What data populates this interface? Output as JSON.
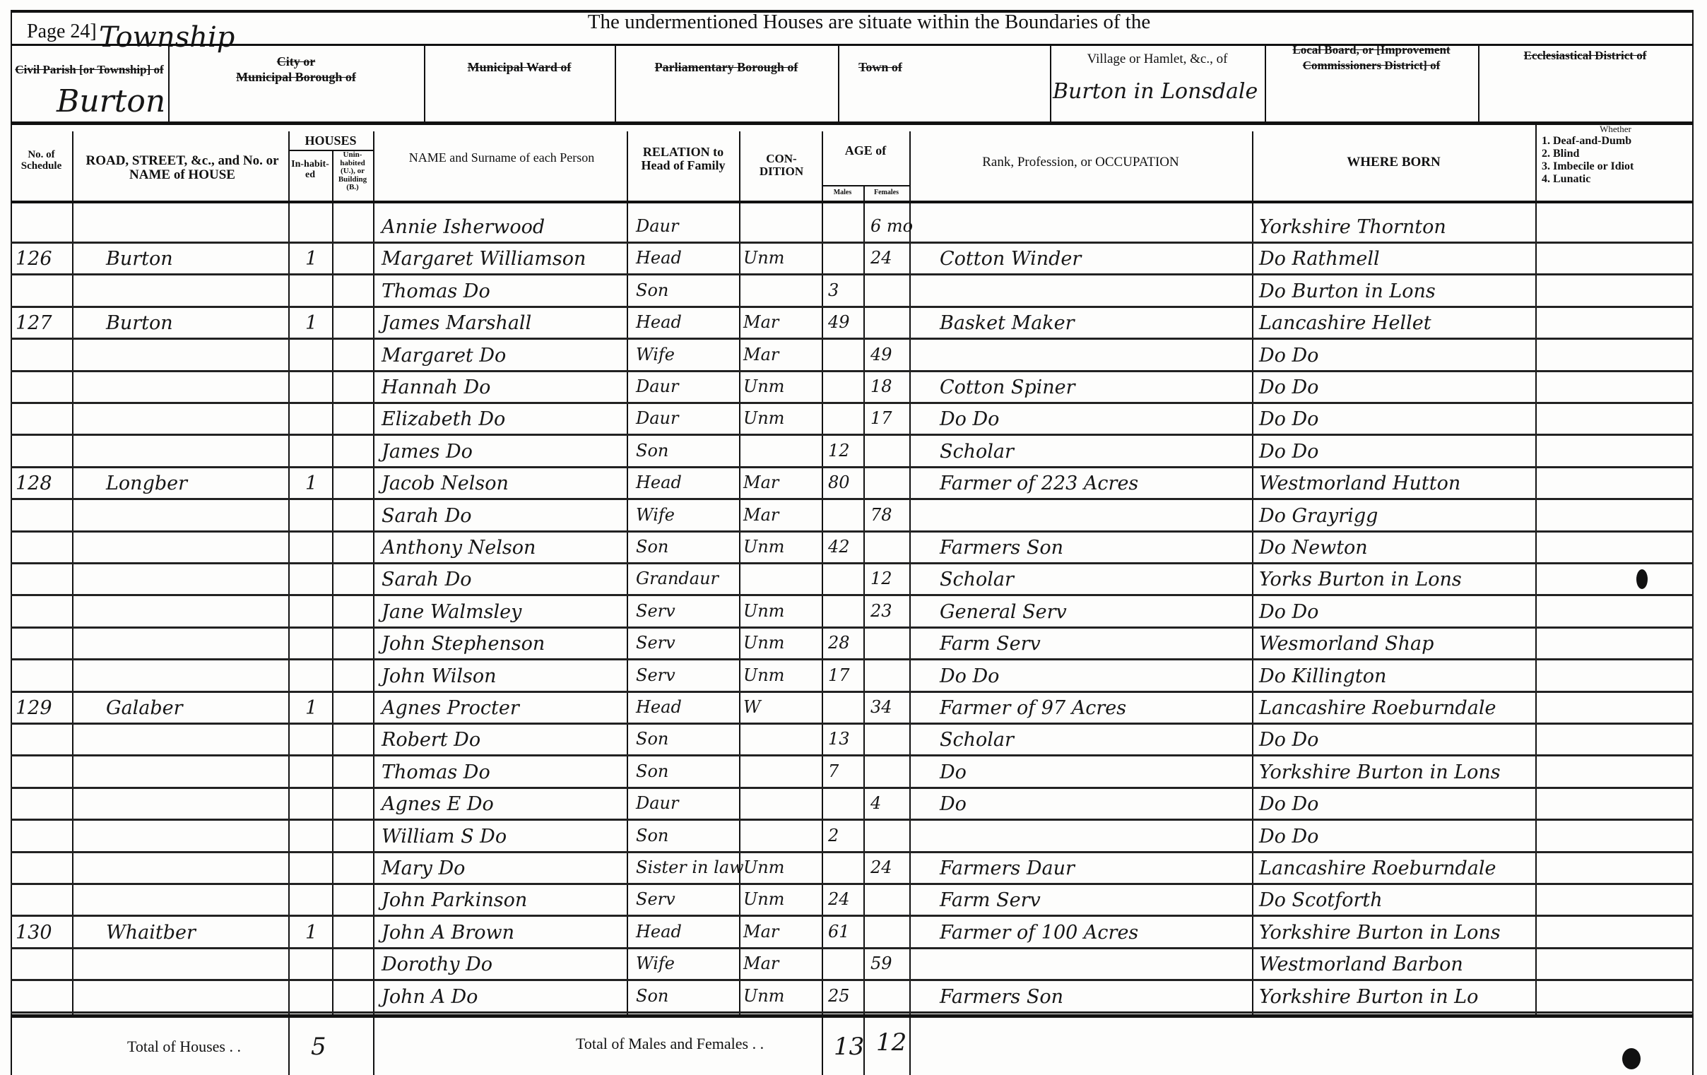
{
  "page_label": "Page 24]",
  "title": "The undermentioned Houses are situate within the Boundaries of the",
  "boundaries": {
    "civil_parish_label": "Civil Parish [or Township] of",
    "civil_parish_overwrite": "Township",
    "civil_parish_value": "Burton",
    "city_label_1": "City or",
    "city_label_2": "Municipal Borough of",
    "ward_label": "Municipal Ward of",
    "parliamentary_label": "Parliamentary Borough of",
    "town_label": "Town of",
    "village_label": "Village or Hamlet, &c., of",
    "village_value": "Burton in Lonsdale",
    "local_board_label_1": "Local Board, or [Improvement",
    "local_board_label_2": "Commissioners District] of",
    "ecclesiastical_label": "Ecclesiastical District of"
  },
  "columns": {
    "schedule": "No. of Schedule",
    "road": "ROAD, STREET, &c., and No. or NAME of HOUSE",
    "houses": "HOUSES",
    "inhabited": "In-habit-ed",
    "uninhabited": "Unin-habited (U.), or Building (B.)",
    "name": "NAME and Surname of each Person",
    "relation": "RELATION to Head of Family",
    "condition": "CON-DITION",
    "age": "AGE of",
    "males": "Males",
    "females": "Females",
    "occupation": "Rank, Profession, or OCCUPATION",
    "where_born": "WHERE BORN",
    "infirmity_title": "Whether",
    "infirmity_1": "1. Deaf-and-Dumb",
    "infirmity_2": "2. Blind",
    "infirmity_3": "3. Imbecile or Idiot",
    "infirmity_4": "4. Lunatic"
  },
  "rows": [
    {
      "schedule": "",
      "road": "",
      "inhabited": "",
      "name": "Annie Isherwood",
      "relation": "Daur",
      "condition": "",
      "male_age": "",
      "female_age": "6 mo",
      "occupation": "",
      "where_born": "Yorkshire  Thornton"
    },
    {
      "schedule": "126",
      "road": "Burton",
      "inhabited": "1",
      "name": "Margaret Williamson",
      "relation": "Head",
      "condition": "Unm",
      "male_age": "",
      "female_age": "24",
      "occupation": "Cotton Winder",
      "where_born": "Do  Rathmell"
    },
    {
      "schedule": "",
      "road": "",
      "inhabited": "",
      "name": "Thomas  Do",
      "relation": "Son",
      "condition": "",
      "male_age": "3",
      "female_age": "",
      "occupation": "",
      "where_born": "Do  Burton in Lons"
    },
    {
      "schedule": "127",
      "road": "Burton",
      "inhabited": "1",
      "name": "James  Marshall",
      "relation": "Head",
      "condition": "Mar",
      "male_age": "49",
      "female_age": "",
      "occupation": "Basket Maker",
      "where_born": "Lancashire  Hellet"
    },
    {
      "schedule": "",
      "road": "",
      "inhabited": "",
      "name": "Margaret  Do",
      "relation": "Wife",
      "condition": "Mar",
      "male_age": "",
      "female_age": "49",
      "occupation": "",
      "where_born": "Do    Do"
    },
    {
      "schedule": "",
      "road": "",
      "inhabited": "",
      "name": "Hannah  Do",
      "relation": "Daur",
      "condition": "Unm",
      "male_age": "",
      "female_age": "18",
      "occupation": "Cotton Spiner",
      "where_born": "Do    Do"
    },
    {
      "schedule": "",
      "road": "",
      "inhabited": "",
      "name": "Elizabeth  Do",
      "relation": "Daur",
      "condition": "Unm",
      "male_age": "",
      "female_age": "17",
      "occupation": "Do    Do",
      "where_born": "Do    Do"
    },
    {
      "schedule": "",
      "road": "",
      "inhabited": "",
      "name": "James  Do",
      "relation": "Son",
      "condition": "",
      "male_age": "12",
      "female_age": "",
      "occupation": "Scholar",
      "where_born": "Do    Do"
    },
    {
      "schedule": "128",
      "road": "Longber",
      "inhabited": "1",
      "name": "Jacob Nelson",
      "relation": "Head",
      "condition": "Mar",
      "male_age": "80",
      "female_age": "",
      "occupation": "Farmer of 223 Acres",
      "where_born": "Westmorland  Hutton"
    },
    {
      "schedule": "",
      "road": "",
      "inhabited": "",
      "name": "Sarah  Do",
      "relation": "Wife",
      "condition": "Mar",
      "male_age": "",
      "female_age": "78",
      "occupation": "",
      "where_born": "Do   Grayrigg"
    },
    {
      "schedule": "",
      "road": "",
      "inhabited": "",
      "name": "Anthony Nelson",
      "relation": "Son",
      "condition": "Unm",
      "male_age": "42",
      "female_age": "",
      "occupation": "Farmers Son",
      "where_born": "Do   Newton"
    },
    {
      "schedule": "",
      "road": "",
      "inhabited": "",
      "name": "Sarah  Do",
      "relation": "Grandaur",
      "condition": "",
      "male_age": "",
      "female_age": "12",
      "occupation": "Scholar",
      "where_born": "Yorks  Burton in Lons"
    },
    {
      "schedule": "",
      "road": "",
      "inhabited": "",
      "name": "Jane Walmsley",
      "relation": "Serv",
      "condition": "Unm",
      "male_age": "",
      "female_age": "23",
      "occupation": "General Serv",
      "where_born": "Do    Do"
    },
    {
      "schedule": "",
      "road": "",
      "inhabited": "",
      "name": "John Stephenson",
      "relation": "Serv",
      "condition": "Unm",
      "male_age": "28",
      "female_age": "",
      "occupation": "Farm Serv",
      "where_born": "Wesmorland  Shap"
    },
    {
      "schedule": "",
      "road": "",
      "inhabited": "",
      "name": "John Wilson",
      "relation": "Serv",
      "condition": "Unm",
      "male_age": "17",
      "female_age": "",
      "occupation": "Do    Do",
      "where_born": "Do   Killington"
    },
    {
      "schedule": "129",
      "road": "Galaber",
      "inhabited": "1",
      "name": "Agnes  Procter",
      "relation": "Head",
      "condition": "W",
      "male_age": "",
      "female_age": "34",
      "occupation": "Farmer of 97 Acres",
      "where_born": "Lancashire Roeburndale"
    },
    {
      "schedule": "",
      "road": "",
      "inhabited": "",
      "name": "Robert  Do",
      "relation": "Son",
      "condition": "",
      "male_age": "13",
      "female_age": "",
      "occupation": "Scholar",
      "where_born": "Do    Do"
    },
    {
      "schedule": "",
      "road": "",
      "inhabited": "",
      "name": "Thomas  Do",
      "relation": "Son",
      "condition": "",
      "male_age": "7",
      "female_age": "",
      "occupation": "Do",
      "where_born": "Yorkshire Burton in Lons"
    },
    {
      "schedule": "",
      "road": "",
      "inhabited": "",
      "name": "Agnes E  Do",
      "relation": "Daur",
      "condition": "",
      "male_age": "",
      "female_age": "4",
      "occupation": "Do",
      "where_born": "Do    Do"
    },
    {
      "schedule": "",
      "road": "",
      "inhabited": "",
      "name": "William S  Do",
      "relation": "Son",
      "condition": "",
      "male_age": "2",
      "female_age": "",
      "occupation": "",
      "where_born": "Do    Do"
    },
    {
      "schedule": "",
      "road": "",
      "inhabited": "",
      "name": "Mary  Do",
      "relation": "Sister in law",
      "condition": "Unm",
      "male_age": "",
      "female_age": "24",
      "occupation": "Farmers Daur",
      "where_born": "Lancashire Roeburndale"
    },
    {
      "schedule": "",
      "road": "",
      "inhabited": "",
      "name": "John Parkinson",
      "relation": "Serv",
      "condition": "Unm",
      "male_age": "24",
      "female_age": "",
      "occupation": "Farm Serv",
      "where_born": "Do   Scotforth"
    },
    {
      "schedule": "130",
      "road": "Whaitber",
      "inhabited": "1",
      "name": "John A  Brown",
      "relation": "Head",
      "condition": "Mar",
      "male_age": "61",
      "female_age": "",
      "occupation": "Farmer of 100 Acres",
      "where_born": "Yorkshire Burton in Lons"
    },
    {
      "schedule": "",
      "road": "",
      "inhabited": "",
      "name": "Dorothy  Do",
      "relation": "Wife",
      "condition": "Mar",
      "male_age": "",
      "female_age": "59",
      "occupation": "",
      "where_born": "Westmorland Barbon"
    },
    {
      "schedule": "",
      "road": "",
      "inhabited": "",
      "name": "John A  Do",
      "relation": "Son",
      "condition": "Unm",
      "male_age": "25",
      "female_age": "",
      "occupation": "Farmers Son",
      "where_born": "Yorkshire Burton in Lo"
    }
  ],
  "totals": {
    "houses_label": "Total of Houses . .",
    "houses_value": "5",
    "persons_label": "Total of Males and Females . .",
    "males_value": "13",
    "females_value": "12"
  }
}
